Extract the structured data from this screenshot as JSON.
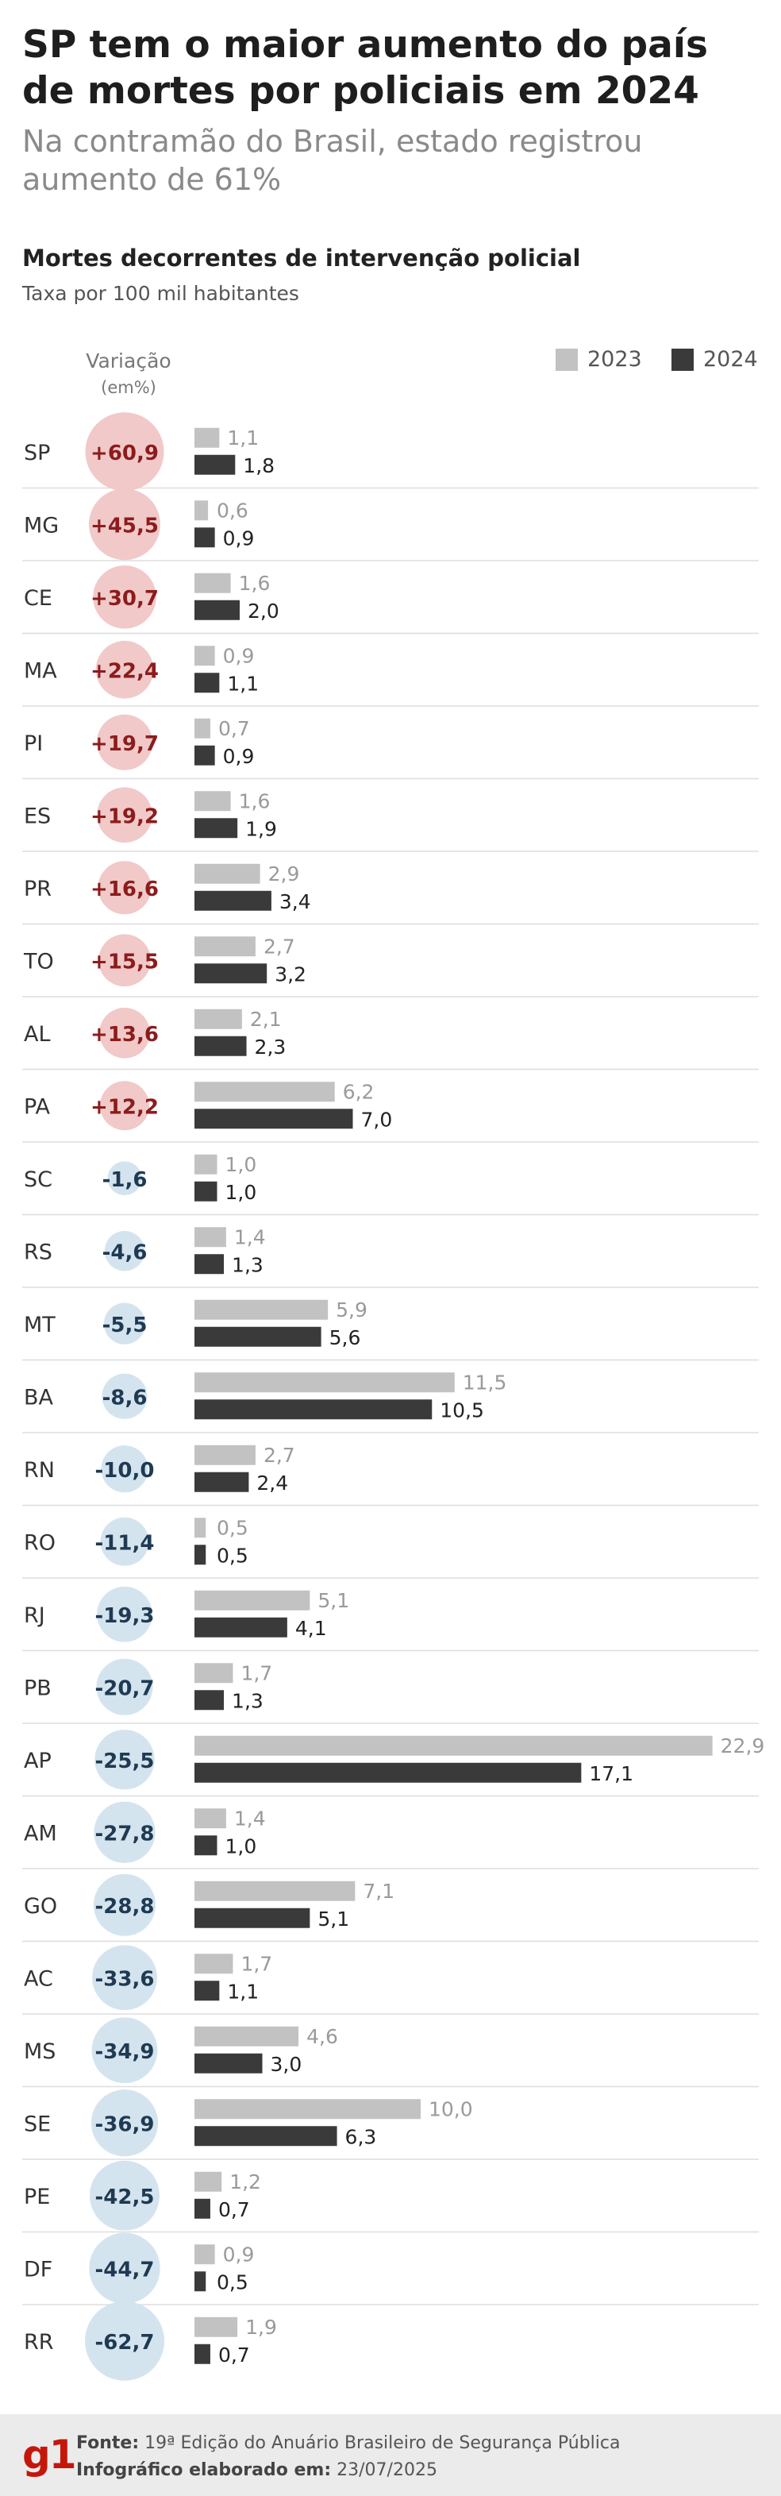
{
  "header": {
    "title": "SP tem o maior aumento do país de mortes por policiais em 2024",
    "subtitle": "Na contramão do Brasil, estado registrou aumento de 61%"
  },
  "chart_data": {
    "type": "bar",
    "title": "Mortes decorrentes de intervenção policial",
    "subtitle": "Taxa por 100 mil habitantes",
    "variation_label_line1": "Variação",
    "variation_label_line2": "(em%)",
    "series": [
      {
        "name": "2023",
        "color": "#c2c2c2"
      },
      {
        "name": "2024",
        "color": "#3a3a3a"
      }
    ],
    "positive_color": "#f1c9c9",
    "negative_color": "#d4e4ef",
    "positive_text_color": "#8c1c1c",
    "negative_text_color": "#1f3a52",
    "rows": [
      {
        "state": "SP",
        "variation": "+60,9",
        "v2023": 1.1,
        "v2024": 1.8,
        "l2023": "1,1",
        "l2024": "1,8"
      },
      {
        "state": "MG",
        "variation": "+45,5",
        "v2023": 0.6,
        "v2024": 0.9,
        "l2023": "0,6",
        "l2024": "0,9"
      },
      {
        "state": "CE",
        "variation": "+30,7",
        "v2023": 1.6,
        "v2024": 2.0,
        "l2023": "1,6",
        "l2024": "2,0"
      },
      {
        "state": "MA",
        "variation": "+22,4",
        "v2023": 0.9,
        "v2024": 1.1,
        "l2023": "0,9",
        "l2024": "1,1"
      },
      {
        "state": "PI",
        "variation": "+19,7",
        "v2023": 0.7,
        "v2024": 0.9,
        "l2023": "0,7",
        "l2024": "0,9"
      },
      {
        "state": "ES",
        "variation": "+19,2",
        "v2023": 1.6,
        "v2024": 1.9,
        "l2023": "1,6",
        "l2024": "1,9"
      },
      {
        "state": "PR",
        "variation": "+16,6",
        "v2023": 2.9,
        "v2024": 3.4,
        "l2023": "2,9",
        "l2024": "3,4"
      },
      {
        "state": "TO",
        "variation": "+15,5",
        "v2023": 2.7,
        "v2024": 3.2,
        "l2023": "2,7",
        "l2024": "3,2"
      },
      {
        "state": "AL",
        "variation": "+13,6",
        "v2023": 2.1,
        "v2024": 2.3,
        "l2023": "2,1",
        "l2024": "2,3"
      },
      {
        "state": "PA",
        "variation": "+12,2",
        "v2023": 6.2,
        "v2024": 7.0,
        "l2023": "6,2",
        "l2024": "7,0"
      },
      {
        "state": "SC",
        "variation": "-1,6",
        "v2023": 1.0,
        "v2024": 1.0,
        "l2023": "1,0",
        "l2024": "1,0"
      },
      {
        "state": "RS",
        "variation": "-4,6",
        "v2023": 1.4,
        "v2024": 1.3,
        "l2023": "1,4",
        "l2024": "1,3"
      },
      {
        "state": "MT",
        "variation": "-5,5",
        "v2023": 5.9,
        "v2024": 5.6,
        "l2023": "5,9",
        "l2024": "5,6"
      },
      {
        "state": "BA",
        "variation": "-8,6",
        "v2023": 11.5,
        "v2024": 10.5,
        "l2023": "11,5",
        "l2024": "10,5"
      },
      {
        "state": "RN",
        "variation": "-10,0",
        "v2023": 2.7,
        "v2024": 2.4,
        "l2023": "2,7",
        "l2024": "2,4"
      },
      {
        "state": "RO",
        "variation": "-11,4",
        "v2023": 0.5,
        "v2024": 0.5,
        "l2023": "0,5",
        "l2024": "0,5"
      },
      {
        "state": "RJ",
        "variation": "-19,3",
        "v2023": 5.1,
        "v2024": 4.1,
        "l2023": "5,1",
        "l2024": "4,1"
      },
      {
        "state": "PB",
        "variation": "-20,7",
        "v2023": 1.7,
        "v2024": 1.3,
        "l2023": "1,7",
        "l2024": "1,3"
      },
      {
        "state": "AP",
        "variation": "-25,5",
        "v2023": 22.9,
        "v2024": 17.1,
        "l2023": "22,9",
        "l2024": "17,1"
      },
      {
        "state": "AM",
        "variation": "-27,8",
        "v2023": 1.4,
        "v2024": 1.0,
        "l2023": "1,4",
        "l2024": "1,0"
      },
      {
        "state": "GO",
        "variation": "-28,8",
        "v2023": 7.1,
        "v2024": 5.1,
        "l2023": "7,1",
        "l2024": "5,1"
      },
      {
        "state": "AC",
        "variation": "-33,6",
        "v2023": 1.7,
        "v2024": 1.1,
        "l2023": "1,7",
        "l2024": "1,1"
      },
      {
        "state": "MS",
        "variation": "-34,9",
        "v2023": 4.6,
        "v2024": 3.0,
        "l2023": "4,6",
        "l2024": "3,0"
      },
      {
        "state": "SE",
        "variation": "-36,9",
        "v2023": 10.0,
        "v2024": 6.3,
        "l2023": "10,0",
        "l2024": "6,3"
      },
      {
        "state": "PE",
        "variation": "-42,5",
        "v2023": 1.2,
        "v2024": 0.7,
        "l2023": "1,2",
        "l2024": "0,7"
      },
      {
        "state": "DF",
        "variation": "-44,7",
        "v2023": 0.9,
        "v2024": 0.5,
        "l2023": "0,9",
        "l2024": "0,5"
      },
      {
        "state": "RR",
        "variation": "-62,7",
        "v2023": 1.9,
        "v2024": 0.7,
        "l2023": "1,9",
        "l2024": "0,7"
      }
    ]
  },
  "footer": {
    "logo": "g1",
    "source_label": "Fonte:",
    "source_text": "19ª Edição do Anuário Brasileiro de Segurança Pública",
    "date_label": "Infográfico elaborado em:",
    "date_text": "23/07/2025"
  }
}
